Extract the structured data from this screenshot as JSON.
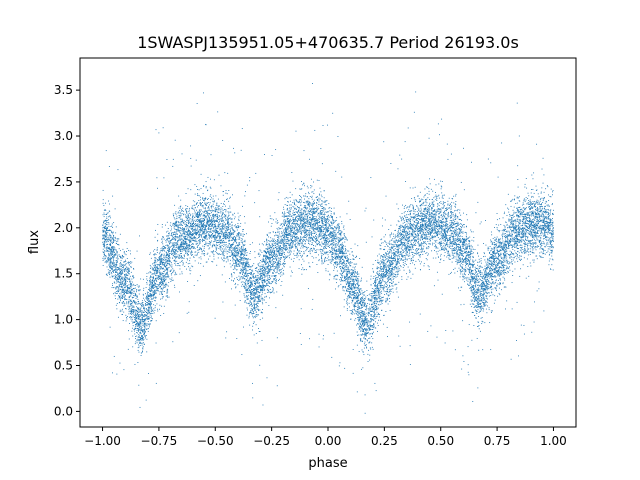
{
  "chart_data": {
    "type": "scatter",
    "title": "1SWASPJ135951.05+470635.7 Period 26193.0s",
    "xlabel": "phase",
    "ylabel": "flux",
    "xlim": [
      -1.1,
      1.1
    ],
    "ylim": [
      -0.17,
      3.85
    ],
    "xticks": [
      -1.0,
      -0.75,
      -0.5,
      -0.25,
      0.0,
      0.25,
      0.5,
      0.75,
      1.0
    ],
    "xtick_labels": [
      "−1.00",
      "−0.75",
      "−0.50",
      "−0.25",
      "0.00",
      "0.25",
      "0.50",
      "0.75",
      "1.00"
    ],
    "yticks": [
      0.0,
      0.5,
      1.0,
      1.5,
      2.0,
      2.5,
      3.0,
      3.5
    ],
    "ytick_labels": [
      "0.0",
      "0.5",
      "1.0",
      "1.5",
      "2.0",
      "2.5",
      "3.0",
      "3.5"
    ],
    "grid": false,
    "color": "#1f77b4",
    "series": [
      {
        "profile_phase": [
          -1.0,
          -0.9,
          -0.83,
          -0.75,
          -0.65,
          -0.55,
          -0.45,
          -0.4,
          -0.33,
          -0.25,
          -0.15,
          -0.05,
          0.0,
          0.05,
          0.1,
          0.17,
          0.25,
          0.35,
          0.45,
          0.55,
          0.6,
          0.67,
          0.75,
          0.85,
          0.95,
          1.0
        ],
        "profile_flux": [
          1.9,
          1.4,
          0.95,
          1.5,
          1.9,
          2.05,
          1.95,
          1.75,
          1.3,
          1.65,
          2.0,
          2.05,
          1.95,
          1.75,
          1.4,
          0.95,
          1.5,
          1.9,
          2.05,
          1.95,
          1.75,
          1.3,
          1.65,
          2.0,
          2.05,
          1.95
        ],
        "scatter_sigma": 0.17,
        "n_points": 14000
      }
    ]
  }
}
